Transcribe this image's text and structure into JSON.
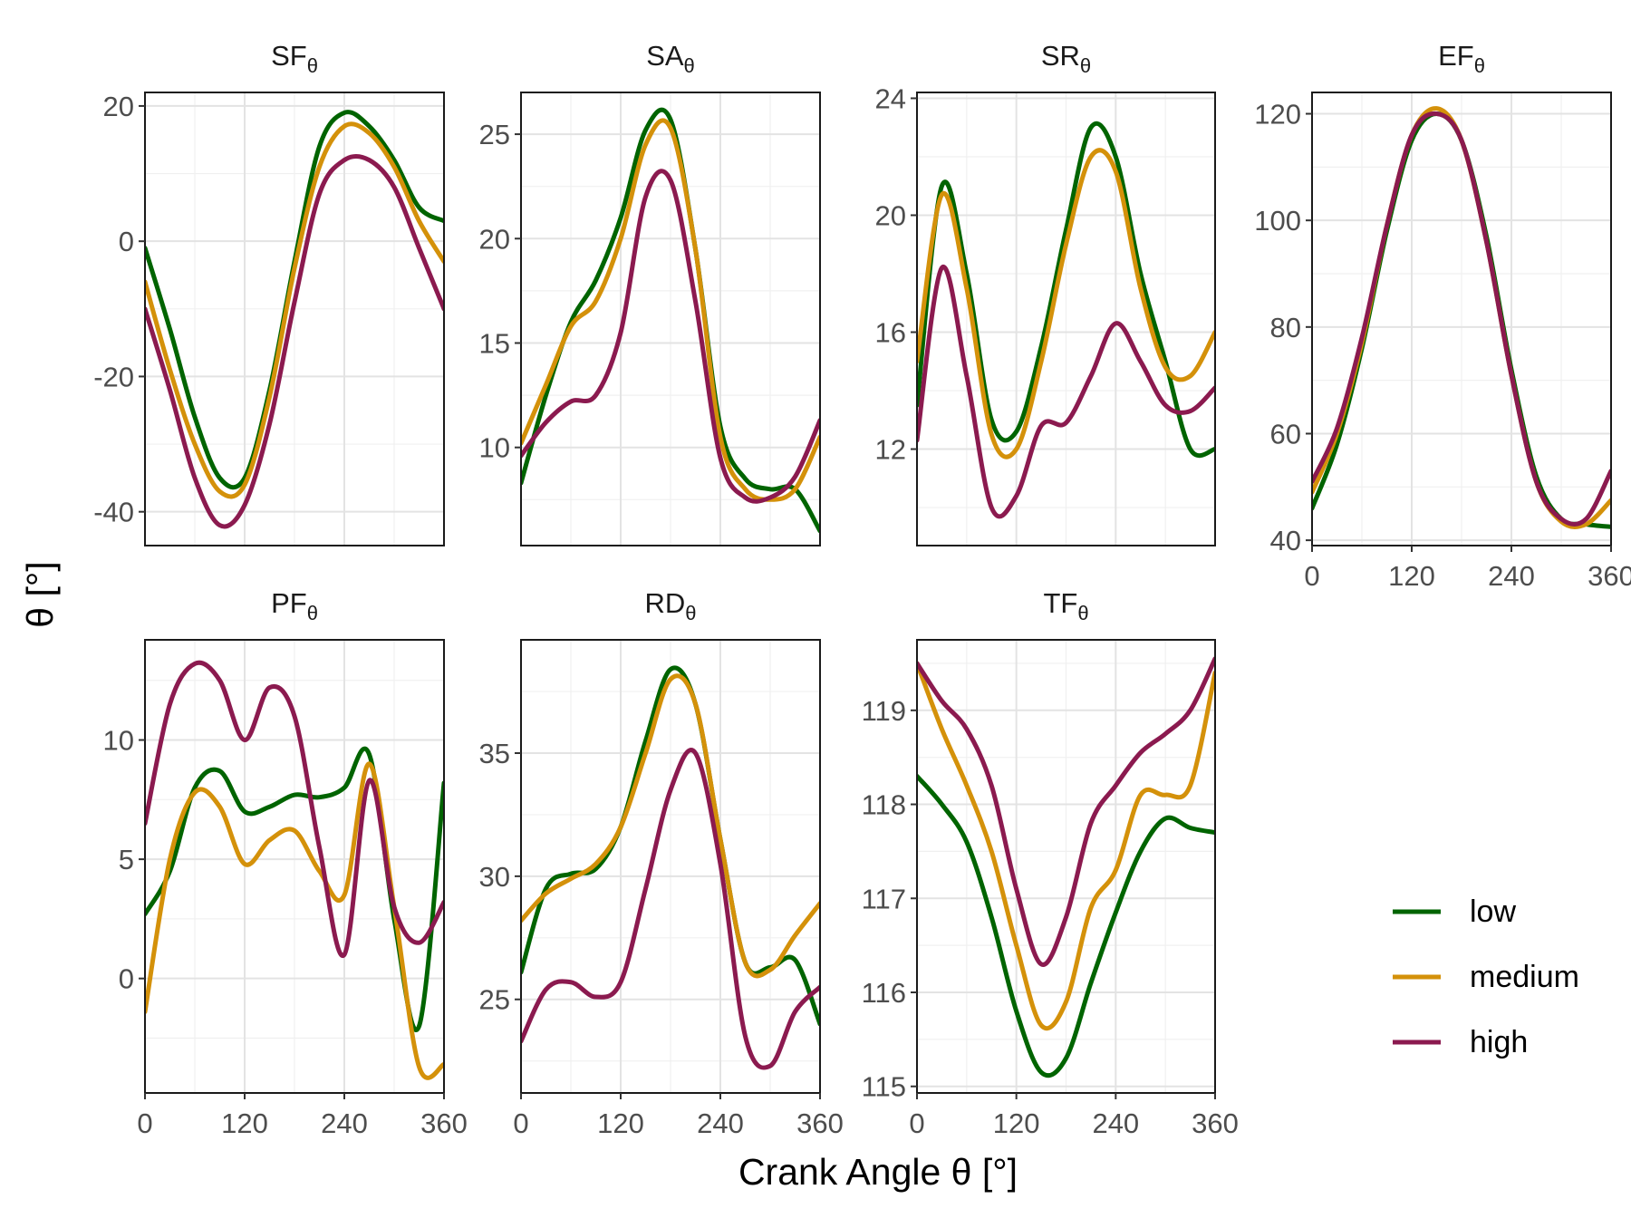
{
  "figure": {
    "xlabel": "Crank Angle θ [°]",
    "ylabel": "θ [°]",
    "legend": {
      "placement": "bottom-right",
      "items": [
        {
          "name": "low",
          "color": "#006400"
        },
        {
          "name": "medium",
          "color": "#D4910A"
        },
        {
          "name": "high",
          "color": "#8B1A4F"
        }
      ]
    }
  },
  "chart_data": [
    {
      "type": "line",
      "title_main": "SF",
      "title_sub": "θ",
      "xlim": [
        0,
        360
      ],
      "ylim": [
        -45,
        22
      ],
      "xticks": [
        0,
        120,
        240,
        360
      ],
      "yticks": [
        -40,
        -20,
        0,
        20
      ],
      "ytick_labels": [
        "-40",
        "-20",
        "0",
        "20"
      ],
      "show_x_ticklabels": false,
      "grid": true,
      "x": [
        0,
        30,
        60,
        90,
        120,
        150,
        180,
        210,
        240,
        270,
        300,
        330,
        360
      ],
      "series": [
        {
          "name": "low",
          "color": "#006400",
          "values": [
            -1,
            -13,
            -26,
            -35,
            -35,
            -22,
            -3,
            14,
            19,
            17,
            12,
            5,
            3
          ]
        },
        {
          "name": "medium",
          "color": "#D4910A",
          "values": [
            -6,
            -19,
            -30,
            -37,
            -36,
            -23,
            -4,
            11,
            17,
            16,
            11,
            3,
            -3
          ]
        },
        {
          "name": "high",
          "color": "#8B1A4F",
          "values": [
            -10,
            -22,
            -35,
            -42,
            -39,
            -27,
            -9,
            7,
            12,
            12,
            8,
            -1,
            -10
          ]
        }
      ]
    },
    {
      "type": "line",
      "title_main": "SA",
      "title_sub": "θ",
      "xlim": [
        0,
        360
      ],
      "ylim": [
        5.3,
        27
      ],
      "xticks": [
        0,
        120,
        240,
        360
      ],
      "yticks": [
        10,
        15,
        20,
        25
      ],
      "ytick_labels": [
        "10",
        "15",
        "20",
        "25"
      ],
      "show_x_ticklabels": false,
      "grid": true,
      "x": [
        0,
        30,
        60,
        90,
        120,
        150,
        180,
        210,
        240,
        270,
        300,
        330,
        360
      ],
      "series": [
        {
          "name": "low",
          "color": "#006400",
          "values": [
            8.3,
            12.5,
            16,
            18,
            21,
            25.2,
            25.7,
            19.5,
            11,
            8.5,
            8,
            8,
            6
          ]
        },
        {
          "name": "medium",
          "color": "#D4910A",
          "values": [
            10.2,
            13,
            15.8,
            17,
            20,
            24.5,
            25.3,
            19.5,
            10.5,
            8,
            7.5,
            8,
            10.5
          ]
        },
        {
          "name": "high",
          "color": "#8B1A4F",
          "values": [
            9.6,
            11.2,
            12.2,
            12.5,
            15.5,
            22,
            22.8,
            17,
            9.5,
            7.6,
            7.6,
            8.6,
            11.3
          ]
        }
      ]
    },
    {
      "type": "line",
      "title_main": "SR",
      "title_sub": "θ",
      "xlim": [
        0,
        360
      ],
      "ylim": [
        8.7,
        24.2
      ],
      "xticks": [
        0,
        120,
        240,
        360
      ],
      "yticks": [
        12,
        16,
        20,
        24
      ],
      "ytick_labels": [
        "12",
        "16",
        "20",
        "24"
      ],
      "show_x_ticklabels": false,
      "grid": true,
      "x": [
        0,
        30,
        60,
        90,
        120,
        150,
        180,
        210,
        240,
        270,
        300,
        330,
        360
      ],
      "series": [
        {
          "name": "low",
          "color": "#006400",
          "values": [
            13.5,
            21,
            18,
            13,
            12.6,
            15.5,
            19.5,
            23,
            22,
            18,
            15,
            12,
            12
          ]
        },
        {
          "name": "medium",
          "color": "#D4910A",
          "values": [
            15,
            20.7,
            17.5,
            12.5,
            12,
            15,
            19,
            22,
            21.5,
            17.5,
            14.8,
            14.5,
            16
          ]
        },
        {
          "name": "high",
          "color": "#8B1A4F",
          "values": [
            12.3,
            18.2,
            14.5,
            10,
            10.4,
            12.8,
            12.9,
            14.5,
            16.3,
            15,
            13.5,
            13.3,
            14.1
          ]
        }
      ]
    },
    {
      "type": "line",
      "title_main": "EF",
      "title_sub": "θ",
      "xlim": [
        0,
        360
      ],
      "ylim": [
        39,
        124
      ],
      "xticks": [
        0,
        120,
        240,
        360
      ],
      "xtick_labels": [
        "0",
        "120",
        "240",
        "360"
      ],
      "yticks": [
        40,
        60,
        80,
        100,
        120
      ],
      "ytick_labels": [
        "40",
        "60",
        "80",
        "100",
        "120"
      ],
      "show_x_ticklabels": true,
      "grid": true,
      "x": [
        0,
        30,
        60,
        90,
        120,
        150,
        180,
        210,
        240,
        270,
        300,
        330,
        360
      ],
      "series": [
        {
          "name": "low",
          "color": "#006400",
          "values": [
            46,
            58,
            76,
            98,
            115,
            120,
            115,
            97,
            72,
            52,
            44,
            43,
            42.5
          ]
        },
        {
          "name": "medium",
          "color": "#D4910A",
          "values": [
            49,
            60,
            77,
            99,
            116,
            121,
            115,
            96,
            71,
            51,
            43.5,
            43,
            47.5
          ]
        },
        {
          "name": "high",
          "color": "#8B1A4F",
          "values": [
            51,
            61,
            78,
            99,
            116,
            120,
            115,
            96,
            71,
            51,
            44,
            44,
            53
          ]
        }
      ]
    },
    {
      "type": "line",
      "title_main": "PF",
      "title_sub": "θ",
      "xlim": [
        0,
        360
      ],
      "ylim": [
        -4.8,
        14.2
      ],
      "xticks": [
        0,
        120,
        240,
        360
      ],
      "xtick_labels": [
        "0",
        "120",
        "240",
        "360"
      ],
      "yticks": [
        0,
        5,
        10
      ],
      "ytick_labels": [
        "0",
        "5",
        "10"
      ],
      "show_x_ticklabels": true,
      "grid": true,
      "x": [
        0,
        30,
        60,
        90,
        120,
        150,
        180,
        210,
        240,
        270,
        300,
        330,
        360
      ],
      "series": [
        {
          "name": "low",
          "color": "#006400",
          "values": [
            2.7,
            4.5,
            8,
            8.7,
            7,
            7.2,
            7.7,
            7.6,
            8,
            9.4,
            2.5,
            -2,
            8.2
          ]
        },
        {
          "name": "medium",
          "color": "#D4910A",
          "values": [
            -1.4,
            5,
            7.8,
            7.2,
            4.8,
            5.8,
            6.2,
            4.5,
            3.5,
            9,
            3,
            -3.7,
            -3.6
          ]
        },
        {
          "name": "high",
          "color": "#8B1A4F",
          "values": [
            6.5,
            11.5,
            13.2,
            12.5,
            10,
            12.2,
            11,
            5.5,
            1,
            8.3,
            3,
            1.5,
            3.2
          ]
        }
      ]
    },
    {
      "type": "line",
      "title_main": "RD",
      "title_sub": "θ",
      "xlim": [
        0,
        360
      ],
      "ylim": [
        21.2,
        39.6
      ],
      "xticks": [
        0,
        120,
        240,
        360
      ],
      "xtick_labels": [
        "0",
        "120",
        "240",
        "360"
      ],
      "yticks": [
        25,
        30,
        35
      ],
      "ytick_labels": [
        "25",
        "30",
        "35"
      ],
      "show_x_ticklabels": true,
      "grid": true,
      "x": [
        0,
        30,
        60,
        90,
        120,
        150,
        180,
        210,
        240,
        270,
        300,
        330,
        360
      ],
      "series": [
        {
          "name": "low",
          "color": "#006400",
          "values": [
            26.1,
            29.5,
            30.1,
            30.3,
            32,
            35.5,
            38.4,
            37,
            31.5,
            26.5,
            26.3,
            26.6,
            24
          ]
        },
        {
          "name": "medium",
          "color": "#D4910A",
          "values": [
            28.2,
            29.3,
            29.9,
            30.5,
            32,
            35,
            38,
            37,
            31.5,
            26.5,
            26.2,
            27.6,
            28.9
          ]
        },
        {
          "name": "high",
          "color": "#8B1A4F",
          "values": [
            23.3,
            25.4,
            25.7,
            25.1,
            25.7,
            29.5,
            33.5,
            35,
            30.5,
            23.5,
            22.3,
            24.5,
            25.5
          ]
        }
      ]
    },
    {
      "type": "line",
      "title_main": "TF",
      "title_sub": "θ",
      "xlim": [
        0,
        360
      ],
      "ylim": [
        114.93,
        119.75
      ],
      "xticks": [
        0,
        120,
        240,
        360
      ],
      "xtick_labels": [
        "0",
        "120",
        "240",
        "360"
      ],
      "yticks": [
        115,
        116,
        117,
        118,
        119
      ],
      "ytick_labels": [
        "115",
        "116",
        "117",
        "118",
        "119"
      ],
      "show_x_ticklabels": true,
      "grid": true,
      "x": [
        0,
        30,
        60,
        90,
        120,
        150,
        180,
        210,
        240,
        270,
        300,
        330,
        360
      ],
      "series": [
        {
          "name": "low",
          "color": "#006400",
          "values": [
            118.3,
            118.0,
            117.6,
            116.8,
            115.8,
            115.15,
            115.3,
            116.1,
            116.85,
            117.5,
            117.85,
            117.75,
            117.7
          ]
        },
        {
          "name": "medium",
          "color": "#D4910A",
          "values": [
            119.5,
            118.8,
            118.2,
            117.5,
            116.5,
            115.65,
            115.9,
            116.9,
            117.3,
            118.1,
            118.1,
            118.2,
            119.4
          ]
        },
        {
          "name": "high",
          "color": "#8B1A4F",
          "values": [
            119.5,
            119.1,
            118.8,
            118.2,
            117.1,
            116.3,
            116.8,
            117.8,
            118.2,
            118.55,
            118.75,
            119.0,
            119.55
          ]
        }
      ]
    }
  ]
}
